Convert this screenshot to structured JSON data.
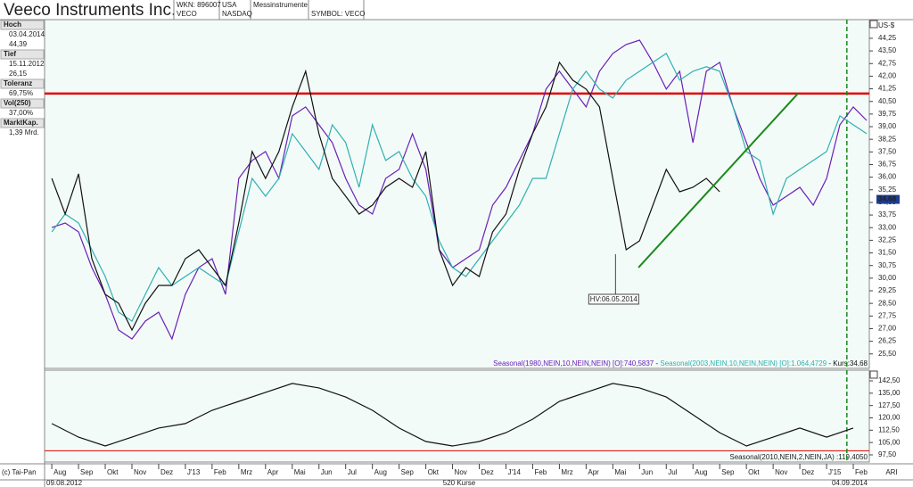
{
  "header": {
    "title": "Veeco Instruments Inc.",
    "wkn": "WKN: 896007",
    "ticker": "VECO",
    "country": "USA",
    "exchange": "NASDAQ",
    "sector": "Messinstrumente",
    "symbol": "SYMBOL: VECO"
  },
  "info": [
    {
      "label": "Hoch",
      "lines": [
        "03.04.2014",
        "44,39"
      ]
    },
    {
      "label": "Tief",
      "lines": [
        "15.11.2012",
        "26,15"
      ]
    },
    {
      "label": "Toleranz",
      "lines": [
        "69,75%"
      ]
    },
    {
      "label": "Vol(250)",
      "lines": [
        "37,00%"
      ]
    },
    {
      "label": "MarktKap.",
      "lines": [
        "1,39 Mrd."
      ]
    }
  ],
  "footer": {
    "copyright": "(c) Tai-Pan",
    "start": "09.08.2012",
    "count": "520 Kurse",
    "end": "04.09.2014",
    "mode": "ARI"
  },
  "chart_data": [
    {
      "type": "line",
      "unit": "US-$",
      "legend_separator": "-",
      "x": [
        0,
        0.5,
        1,
        1.5,
        2,
        2.5,
        3,
        3.5,
        4,
        4.5,
        5,
        5.5,
        6,
        6.5,
        7,
        7.5,
        8,
        8.5,
        9,
        9.5,
        10,
        10.5,
        11,
        11.5,
        12,
        12.5,
        13,
        13.5,
        14,
        14.5,
        15,
        15.5,
        16,
        16.5,
        17,
        17.5,
        18,
        18.5,
        19,
        19.5,
        20,
        20.5,
        21,
        21.5,
        22,
        22.5,
        23,
        23.5,
        24,
        24.5,
        25,
        25.5,
        26,
        26.5,
        27,
        27.5,
        28,
        28.5,
        29,
        29.5,
        30,
        30.5
      ],
      "xlim": [
        -0.27,
        30.6
      ],
      "xticks": [
        {
          "value": 0,
          "label": "Aug"
        },
        {
          "value": 1,
          "label": "Sep"
        },
        {
          "value": 2,
          "label": "Okt"
        },
        {
          "value": 3,
          "label": "Nov"
        },
        {
          "value": 4,
          "label": "Dez"
        },
        {
          "value": 5,
          "label": "J'13"
        },
        {
          "value": 6,
          "label": "Feb"
        },
        {
          "value": 7,
          "label": "Mrz"
        },
        {
          "value": 8,
          "label": "Apr"
        },
        {
          "value": 9,
          "label": "Mai"
        },
        {
          "value": 10,
          "label": "Jun"
        },
        {
          "value": 11,
          "label": "Jul"
        },
        {
          "value": 12,
          "label": "Aug"
        },
        {
          "value": 13,
          "label": "Sep"
        },
        {
          "value": 14,
          "label": "Okt"
        },
        {
          "value": 15,
          "label": "Nov"
        },
        {
          "value": 16,
          "label": "Dez"
        },
        {
          "value": 17,
          "label": "J'14"
        },
        {
          "value": 18,
          "label": "Feb"
        },
        {
          "value": 19,
          "label": "Mrz"
        },
        {
          "value": 20,
          "label": "Apr"
        },
        {
          "value": 21,
          "label": "Mai"
        },
        {
          "value": 22,
          "label": "Jun"
        },
        {
          "value": 23,
          "label": "Jul"
        },
        {
          "value": 24,
          "label": "Aug"
        },
        {
          "value": 25,
          "label": "Sep"
        },
        {
          "value": 26,
          "label": "Okt"
        },
        {
          "value": 27,
          "label": "Nov"
        },
        {
          "value": 28,
          "label": "Dez"
        },
        {
          "value": 29,
          "label": "J'15"
        },
        {
          "value": 30,
          "label": "Feb"
        }
      ],
      "ylim": [
        24.64,
        45.36
      ],
      "yticks": [
        {
          "value": 25.5,
          "label": "25,50"
        },
        {
          "value": 26.25,
          "label": "26,25"
        },
        {
          "value": 27,
          "label": "27,00"
        },
        {
          "value": 27.75,
          "label": "27,75"
        },
        {
          "value": 28.5,
          "label": "28,50"
        },
        {
          "value": 29.25,
          "label": "29,25"
        },
        {
          "value": 30,
          "label": "30,00"
        },
        {
          "value": 30.75,
          "label": "30,75"
        },
        {
          "value": 31.5,
          "label": "31,50"
        },
        {
          "value": 32.25,
          "label": "32,25"
        },
        {
          "value": 33,
          "label": "33,00"
        },
        {
          "value": 33.75,
          "label": "33,75"
        },
        {
          "value": 34.5,
          "label": "34,50"
        },
        {
          "value": 35.25,
          "label": "35,25"
        },
        {
          "value": 36,
          "label": "36,00"
        },
        {
          "value": 36.75,
          "label": "36,75"
        },
        {
          "value": 37.5,
          "label": "37,50"
        },
        {
          "value": 38.25,
          "label": "38,25"
        },
        {
          "value": 39,
          "label": "39,00"
        },
        {
          "value": 39.75,
          "label": "39,75"
        },
        {
          "value": 40.5,
          "label": "40,50"
        },
        {
          "value": 41.25,
          "label": "41,25"
        },
        {
          "value": 42,
          "label": "42,00"
        },
        {
          "value": 42.75,
          "label": "42,75"
        },
        {
          "value": 43.5,
          "label": "43,50"
        },
        {
          "value": 44.25,
          "label": "44,25"
        }
      ],
      "series": [
        {
          "name": "Seasonal(1980,NEIN,10,NEIN,NEIN) [O]:740,5837",
          "color": "#6a1fb8",
          "values": [
            33.01,
            33.28,
            32.75,
            30.63,
            29.04,
            26.92,
            26.39,
            27.45,
            27.98,
            26.39,
            29.04,
            30.63,
            31.16,
            29.04,
            35.93,
            36.99,
            37.52,
            35.93,
            39.64,
            40.17,
            39.11,
            38.05,
            35.93,
            34.34,
            33.81,
            35.93,
            36.46,
            38.58,
            36.46,
            31.69,
            30.63,
            31.16,
            31.69,
            34.34,
            35.4,
            36.99,
            38.58,
            41.23,
            42.29,
            41.23,
            40.17,
            42.29,
            43.35,
            43.88,
            44.14,
            42.82,
            41.23,
            42.29,
            38.05,
            42.29,
            42.82,
            40.17,
            38.05,
            35.93,
            34.34,
            34.87,
            35.4,
            34.34,
            35.93,
            39.11,
            40.17,
            39.37
          ]
        },
        {
          "name": "Seasonal(2003,NEIN,10,NEIN,NEIN) [O]:1.064,4729",
          "color": "#2fb0b0",
          "values": [
            32.75,
            33.81,
            33.28,
            31.69,
            30.1,
            27.98,
            27.45,
            29.04,
            30.63,
            29.57,
            30.1,
            30.63,
            30.1,
            29.57,
            32.75,
            35.93,
            34.87,
            35.93,
            38.58,
            37.52,
            36.46,
            39.11,
            38.05,
            35.4,
            39.11,
            36.99,
            37.52,
            35.93,
            34.87,
            32.22,
            30.63,
            30.1,
            31.16,
            32.22,
            33.28,
            34.34,
            35.93,
            35.93,
            38.58,
            41.23,
            42.29,
            41.23,
            40.7,
            41.76,
            42.29,
            42.82,
            43.35,
            41.76,
            42.29,
            42.56,
            42.29,
            40.17,
            37.52,
            36.99,
            33.81,
            35.93,
            36.46,
            36.99,
            37.52,
            39.64,
            39.11,
            38.58
          ]
        },
        {
          "name": "Kurs:34,68",
          "color": "#111111",
          "values": [
            35.93,
            33.81,
            36.2,
            31.16,
            29.04,
            28.51,
            26.92,
            28.51,
            29.57,
            29.57,
            31.16,
            31.69,
            30.63,
            29.57,
            33.28,
            37.52,
            35.93,
            37.52,
            40.17,
            42.29,
            38.58,
            35.93,
            34.87,
            33.81,
            34.34,
            35.4,
            35.93,
            35.4,
            37.52,
            31.69,
            29.57,
            30.63,
            30.1,
            32.75,
            33.81,
            36.46,
            38.58,
            40.17,
            42.82,
            41.76,
            41.23,
            40.17,
            35.93,
            31.69,
            32.22,
            34.34,
            36.46,
            35.13,
            35.4,
            35.93,
            35.13,
            null,
            null,
            null,
            null,
            null,
            null,
            null,
            null,
            null,
            null,
            null
          ]
        }
      ],
      "hline": {
        "value": 40.97,
        "color": "#e00000"
      },
      "trendline": {
        "x": [
          21.96,
          27.93
        ],
        "y": [
          30.63,
          40.97
        ],
        "color": "#1a8a1a"
      },
      "vline": {
        "x": 29.76,
        "color": "#1a8a1a"
      },
      "last_price": {
        "value": 34.68,
        "label": "34,68"
      },
      "annotation": {
        "text": "HV:06.05.2014",
        "x": 21.1,
        "y": 29.04
      }
    },
    {
      "type": "line",
      "x": [
        0,
        1,
        2,
        3,
        4,
        5,
        6,
        7,
        8,
        9,
        10,
        11,
        12,
        13,
        14,
        15,
        16,
        17,
        18,
        19,
        20,
        21,
        22,
        23,
        24,
        25,
        26,
        27,
        28,
        29,
        30
      ],
      "xlim": [
        -0.27,
        30.6
      ],
      "ylim": [
        93.15,
        149.0
      ],
      "yticks": [
        {
          "value": 97.5,
          "label": "97,50"
        },
        {
          "value": 105,
          "label": "105,00"
        },
        {
          "value": 112.5,
          "label": "112,50"
        },
        {
          "value": 120,
          "label": "120,00"
        },
        {
          "value": 127.5,
          "label": "127,50"
        },
        {
          "value": 135,
          "label": "135,00"
        },
        {
          "value": 142.5,
          "label": "142,50"
        }
      ],
      "series": [
        {
          "name": "Seasonal(2010,NEIN,2,NEIN,JA) :119,4050",
          "color": "#111111",
          "values": [
            116.5,
            108.3,
            102.9,
            108.3,
            113.8,
            116.5,
            124.6,
            130.0,
            135.5,
            140.9,
            138.2,
            132.7,
            124.6,
            113.8,
            105.6,
            102.9,
            105.6,
            111.0,
            119.2,
            130.0,
            135.5,
            140.9,
            138.2,
            132.7,
            121.9,
            111.0,
            102.9,
            108.3,
            113.8,
            108.3,
            113.8
          ]
        }
      ],
      "hline": {
        "value": 100,
        "color": "#e00000"
      },
      "vline": {
        "x": 29.76,
        "color": "#1a8a1a"
      }
    }
  ]
}
